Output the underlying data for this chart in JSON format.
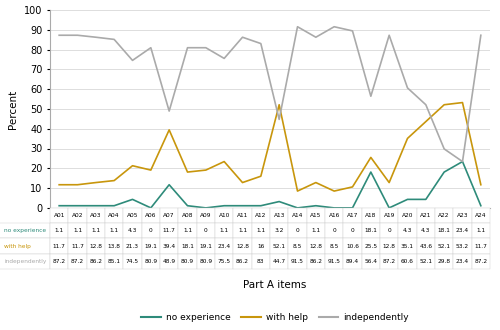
{
  "categories": [
    "A01",
    "A02",
    "A03",
    "A04",
    "A05",
    "A06",
    "A07",
    "A08",
    "A09",
    "A10",
    "A11",
    "A12",
    "A13",
    "A14",
    "A15",
    "A16",
    "A17",
    "A18",
    "A19",
    "A20",
    "A21",
    "A22",
    "A23",
    "A24"
  ],
  "no_experience": [
    1.1,
    1.1,
    1.1,
    1.1,
    4.3,
    0,
    11.7,
    1.1,
    0,
    1.1,
    1.1,
    1.1,
    3.2,
    0,
    1.1,
    0,
    0,
    18.1,
    0,
    4.3,
    4.3,
    18.1,
    23.4,
    1.1
  ],
  "with_help": [
    11.7,
    11.7,
    12.8,
    13.8,
    21.3,
    19.1,
    39.4,
    18.1,
    19.1,
    23.4,
    12.8,
    16,
    52.1,
    8.5,
    12.8,
    8.5,
    10.6,
    25.5,
    12.8,
    35.1,
    43.6,
    52.1,
    53.2,
    11.7
  ],
  "independently": [
    87.2,
    87.2,
    86.2,
    85.1,
    74.5,
    80.9,
    48.9,
    80.9,
    80.9,
    75.5,
    86.2,
    83,
    44.7,
    91.5,
    86.2,
    91.5,
    89.4,
    56.4,
    87.2,
    60.6,
    52.1,
    29.8,
    23.4,
    87.2
  ],
  "color_no_experience": "#2e8b7a",
  "color_with_help": "#c8960c",
  "color_independently": "#aaaaaa",
  "ylabel": "Percent",
  "xlabel": "Part A items",
  "ylim": [
    0,
    100
  ],
  "yticks": [
    0,
    10,
    20,
    30,
    40,
    50,
    60,
    70,
    80,
    90,
    100
  ],
  "no_exp_str": [
    "1.1",
    "1.1",
    "1.1",
    "1.1",
    "4.3",
    "0",
    "11.7",
    "1.1",
    "0",
    "1.1",
    "1.1",
    "1.1",
    "3.2",
    "0",
    "1.1",
    "0",
    "0",
    "18.1",
    "0",
    "4.3",
    "4.3",
    "18.1",
    "23.4",
    "1.1"
  ],
  "with_help_str": [
    "11.7",
    "11.7",
    "12.8",
    "13.8",
    "21.3",
    "19.1",
    "39.4",
    "18.1",
    "19.1",
    "23.4",
    "12.8",
    "16",
    "52.1",
    "8.5",
    "12.8",
    "8.5",
    "10.6",
    "25.5",
    "12.8",
    "35.1",
    "43.6",
    "52.1",
    "53.2",
    "11.7"
  ],
  "indep_str": [
    "87.2",
    "87.2",
    "86.2",
    "85.1",
    "74.5",
    "80.9",
    "48.9",
    "80.9",
    "80.9",
    "75.5",
    "86.2",
    "83",
    "44.7",
    "91.5",
    "86.2",
    "91.5",
    "89.4",
    "56.4",
    "87.2",
    "60.6",
    "52.1",
    "29.8",
    "23.4",
    "87.2"
  ],
  "row_labels": [
    "no experience",
    "with help",
    "independently"
  ],
  "legend_labels": [
    "no experience",
    "with help",
    "independently"
  ],
  "figsize": [
    5.0,
    3.3
  ],
  "dpi": 100
}
